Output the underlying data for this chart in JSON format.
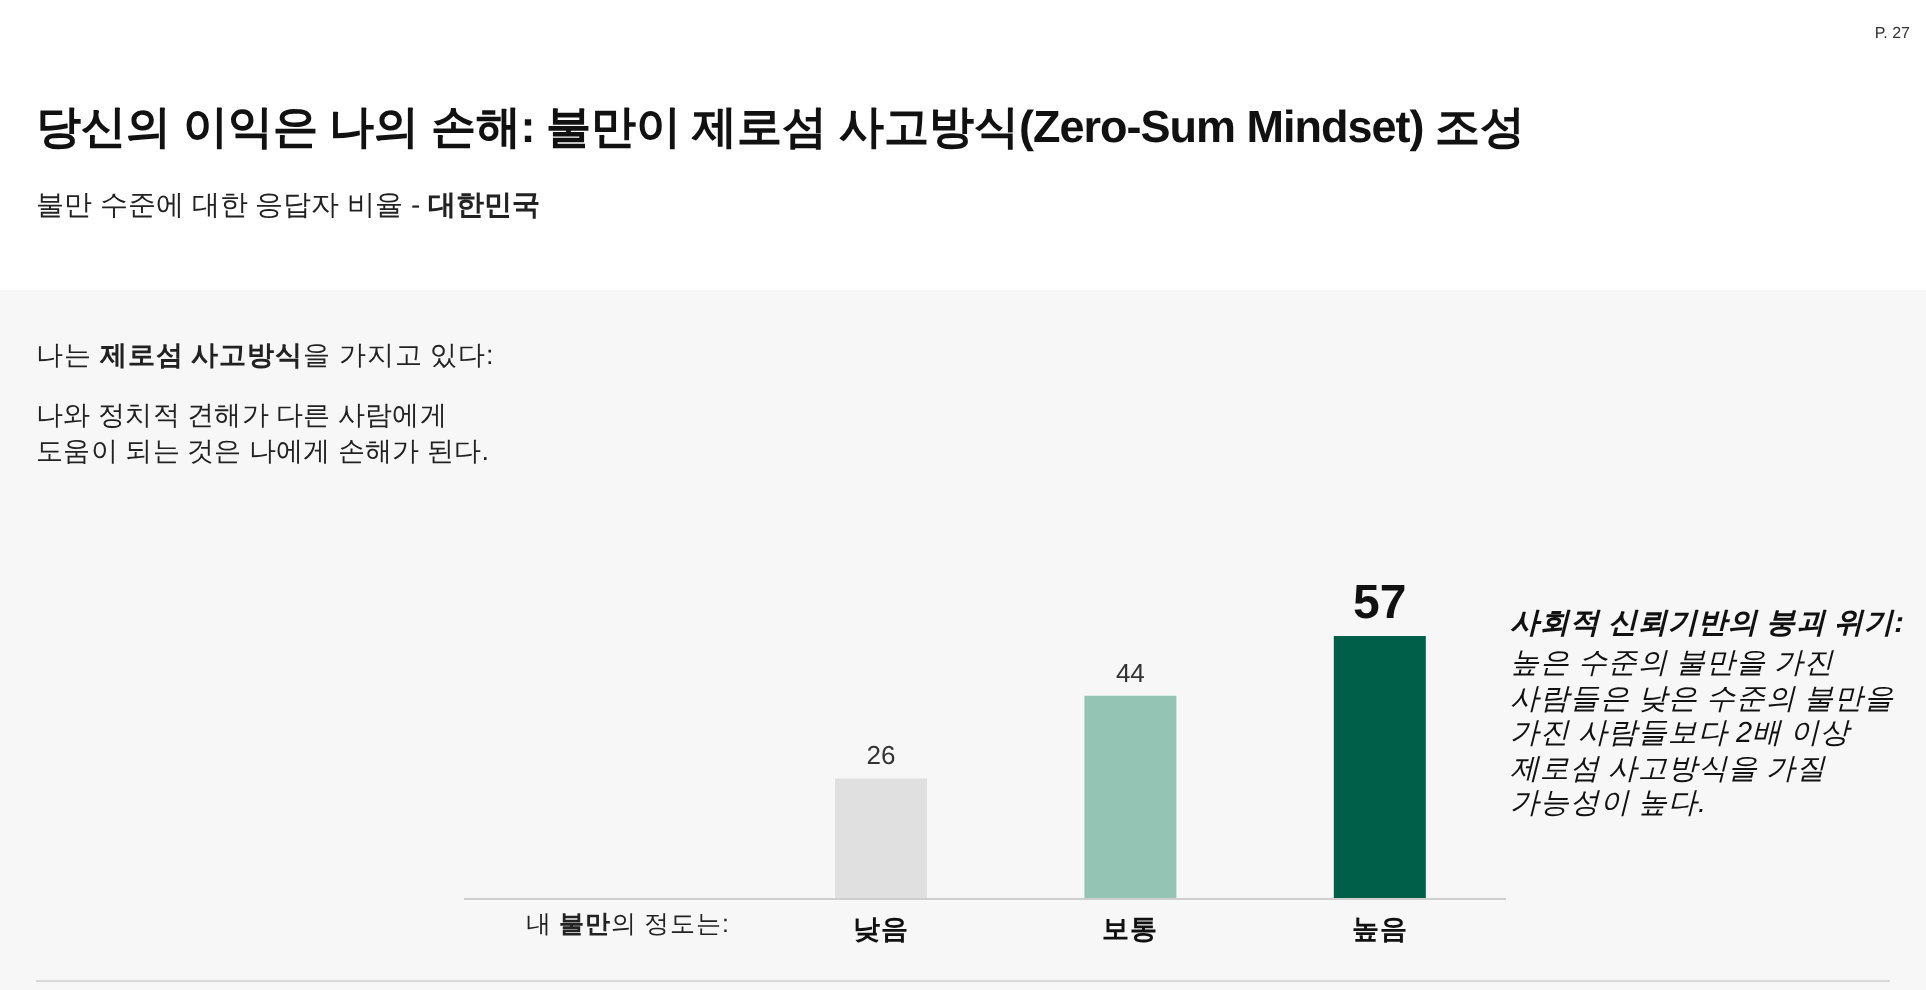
{
  "chart_data": {
    "type": "bar",
    "title": "당신의 이익은 나의 손해: 불만이 제로섬 사고방식(Zero-Sum Mindset) 조성",
    "subtitle": "불만 수준에 대한 응답자 비율 - **대한민국**",
    "xlabel": "내 **불만**의 정도는:",
    "categories": [
      "낮음",
      "보통",
      "높음"
    ],
    "values": [
      26,
      44,
      57
    ],
    "colors": [
      "#e0e0e0",
      "#93c4b4",
      "#005f49"
    ],
    "data_labels": true,
    "annotations": [
      "P. 27",
      "나는 **제로섬 사고방식**을 가지고 있다:",
      "나와 정치적 견해가 다른 사람에게 도움이 되는 것은 나에게 손해가 된다.",
      "사회적 신뢰기반의 붕괴 위기:",
      "높은 수준의 불만을 가진 사람들은 낮은 수준의 불만을 가진 사람들보다 2배 이상 제로섬 사고방식을 가질 가능성이 높다."
    ]
  }
}
